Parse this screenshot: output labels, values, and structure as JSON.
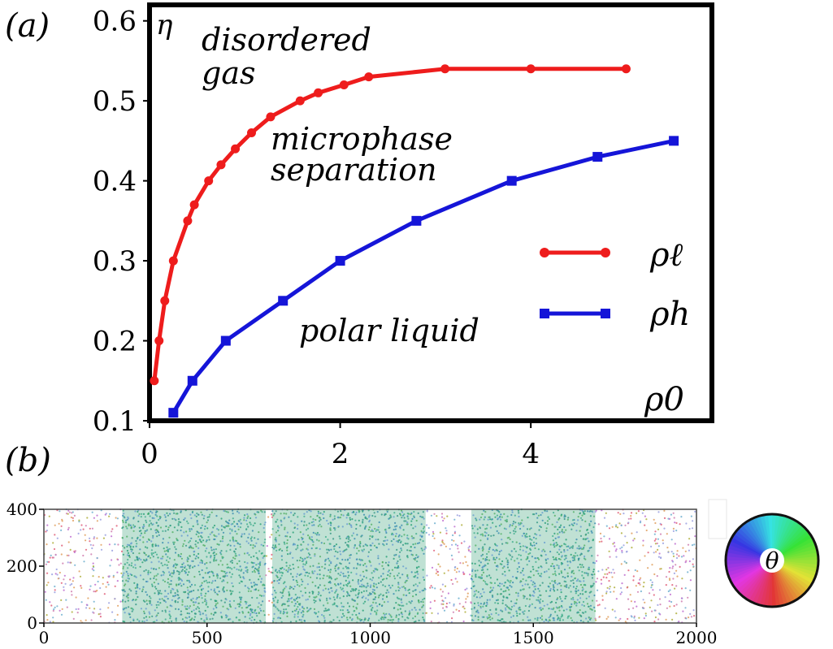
{
  "panel_a": {
    "label": "(a)",
    "chart_data": {
      "type": "line",
      "xlabel": "ρ0",
      "ylabel": "η",
      "xlim": [
        0,
        5.9
      ],
      "ylim": [
        0.1,
        0.62
      ],
      "x_ticks": [
        0,
        2,
        4
      ],
      "y_ticks": [
        0.1,
        0.2,
        0.3,
        0.4,
        0.5,
        0.6
      ],
      "x_tick_labels": [
        "0",
        "2",
        "4"
      ],
      "y_tick_labels": [
        "0.1",
        "0.2",
        "0.3",
        "0.4",
        "0.5",
        "0.6"
      ],
      "legend_placement": "right",
      "grid": false,
      "series": [
        {
          "name": "ρℓ",
          "color": "#ee1c1c",
          "marker": "circle",
          "points": [
            [
              0.05,
              0.15
            ],
            [
              0.1,
              0.2
            ],
            [
              0.16,
              0.25
            ],
            [
              0.25,
              0.3
            ],
            [
              0.4,
              0.35
            ],
            [
              0.47,
              0.37
            ],
            [
              0.62,
              0.4
            ],
            [
              0.75,
              0.42
            ],
            [
              0.9,
              0.44
            ],
            [
              1.07,
              0.46
            ],
            [
              1.27,
              0.48
            ],
            [
              1.58,
              0.5
            ],
            [
              1.77,
              0.51
            ],
            [
              2.04,
              0.52
            ],
            [
              2.3,
              0.53
            ],
            [
              3.1,
              0.54
            ],
            [
              4.0,
              0.54
            ],
            [
              5.0,
              0.54
            ]
          ]
        },
        {
          "name": "ρh",
          "color": "#1515d8",
          "marker": "square",
          "points": [
            [
              0.25,
              0.11
            ],
            [
              0.45,
              0.15
            ],
            [
              0.8,
              0.2
            ],
            [
              1.4,
              0.25
            ],
            [
              2.0,
              0.3
            ],
            [
              2.8,
              0.35
            ],
            [
              3.8,
              0.4
            ],
            [
              4.7,
              0.43
            ],
            [
              5.5,
              0.45
            ]
          ]
        }
      ],
      "annotations": [
        "disordered",
        "gas",
        "microphase",
        "separation",
        "polar liquid"
      ]
    }
  },
  "panel_b": {
    "label": "(b)",
    "chart_data": {
      "type": "scatter",
      "description_kind": "particle snapshot colored by orientation θ",
      "xlim": [
        0,
        2000
      ],
      "ylim": [
        0,
        400
      ],
      "x_ticks": [
        0,
        500,
        1000,
        1500,
        2000
      ],
      "y_ticks": [
        0,
        200,
        400
      ],
      "x_tick_labels": [
        "0",
        "500",
        "1000",
        "1500",
        "2000"
      ],
      "y_tick_labels": [
        "0",
        "200",
        "400"
      ],
      "dense_bands_x": [
        [
          240,
          680
        ],
        [
          700,
          1170
        ],
        [
          1310,
          1690
        ]
      ],
      "band_color": "#3aa37a",
      "colorwheel_label": "θ"
    }
  }
}
